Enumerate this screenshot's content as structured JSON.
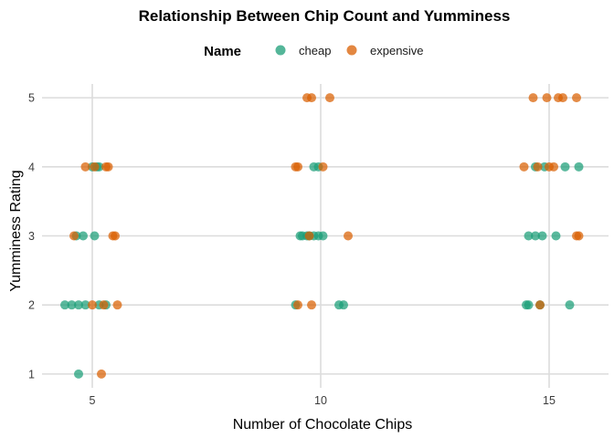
{
  "chart_data": {
    "type": "scatter",
    "title": "Relationship Between Chip Count and Yumminess",
    "xlabel": "Number of Chocolate Chips",
    "ylabel": "Yumminess Rating",
    "xlim": [
      3.9,
      16.3
    ],
    "ylim": [
      0.8,
      5.2
    ],
    "xticks": [
      "5",
      "10",
      "15"
    ],
    "xtick_values": [
      5,
      10,
      15
    ],
    "yticks": [
      "1",
      "2",
      "3",
      "4",
      "5"
    ],
    "ytick_values": [
      1,
      2,
      3,
      4,
      5
    ],
    "grid": true,
    "legend": {
      "title": "Name",
      "position": "top"
    },
    "series": [
      {
        "name": "cheap",
        "color": "#1b9e77",
        "points": [
          [
            4.7,
            1
          ],
          [
            4.4,
            2
          ],
          [
            4.55,
            2
          ],
          [
            4.7,
            2
          ],
          [
            4.85,
            2
          ],
          [
            5.15,
            2
          ],
          [
            5.3,
            2
          ],
          [
            9.45,
            2
          ],
          [
            10.4,
            2
          ],
          [
            10.5,
            2
          ],
          [
            14.5,
            2
          ],
          [
            14.55,
            2
          ],
          [
            14.8,
            2
          ],
          [
            15.45,
            2
          ],
          [
            4.65,
            3
          ],
          [
            4.8,
            3
          ],
          [
            5.05,
            3
          ],
          [
            9.55,
            3
          ],
          [
            9.6,
            3
          ],
          [
            9.7,
            3
          ],
          [
            9.75,
            3
          ],
          [
            9.85,
            3
          ],
          [
            9.95,
            3
          ],
          [
            10.05,
            3
          ],
          [
            14.55,
            3
          ],
          [
            14.7,
            3
          ],
          [
            14.85,
            3
          ],
          [
            15.15,
            3
          ],
          [
            5.0,
            4
          ],
          [
            5.1,
            4
          ],
          [
            5.15,
            4
          ],
          [
            9.85,
            4
          ],
          [
            9.95,
            4
          ],
          [
            14.7,
            4
          ],
          [
            14.9,
            4
          ],
          [
            15.35,
            4
          ],
          [
            15.65,
            4
          ]
        ]
      },
      {
        "name": "expensive",
        "color": "#d95f02",
        "points": [
          [
            5.2,
            1
          ],
          [
            5.0,
            2
          ],
          [
            5.25,
            2
          ],
          [
            5.55,
            2
          ],
          [
            9.5,
            2
          ],
          [
            9.8,
            2
          ],
          [
            14.8,
            2
          ],
          [
            4.6,
            3
          ],
          [
            5.45,
            3
          ],
          [
            5.5,
            3
          ],
          [
            9.75,
            3
          ],
          [
            10.6,
            3
          ],
          [
            15.6,
            3
          ],
          [
            15.65,
            3
          ],
          [
            4.85,
            4
          ],
          [
            5.05,
            4
          ],
          [
            5.3,
            4
          ],
          [
            5.35,
            4
          ],
          [
            9.45,
            4
          ],
          [
            9.5,
            4
          ],
          [
            10.05,
            4
          ],
          [
            14.45,
            4
          ],
          [
            14.75,
            4
          ],
          [
            15.0,
            4
          ],
          [
            15.1,
            4
          ],
          [
            9.7,
            5
          ],
          [
            9.8,
            5
          ],
          [
            10.2,
            5
          ],
          [
            14.65,
            5
          ],
          [
            14.95,
            5
          ],
          [
            15.2,
            5
          ],
          [
            15.3,
            5
          ],
          [
            15.6,
            5
          ]
        ]
      }
    ]
  }
}
